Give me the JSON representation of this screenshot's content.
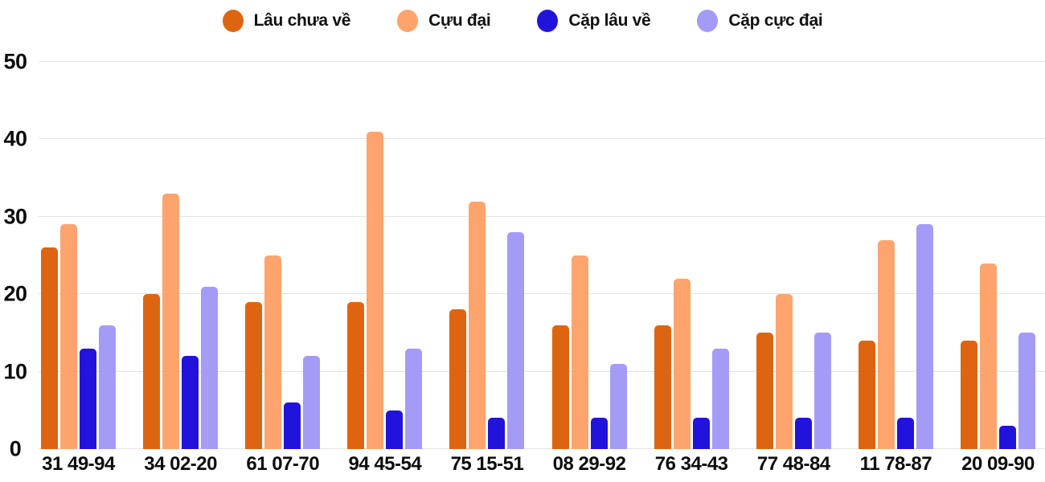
{
  "chart_data": {
    "type": "bar",
    "title": "",
    "categories": [
      "31 49-94",
      "34 02-20",
      "61 07-70",
      "94 45-54",
      "75 15-51",
      "08 29-92",
      "76 34-43",
      "77 48-84",
      "11 78-87",
      "20 09-90"
    ],
    "series": [
      {
        "name": "Lâu chưa về",
        "color": "#DD6512",
        "values": [
          26,
          20,
          19,
          19,
          18,
          16,
          16,
          15,
          14,
          14
        ]
      },
      {
        "name": "Cựu đại",
        "color": "#FFA46D",
        "values": [
          29,
          33,
          25,
          41,
          32,
          25,
          22,
          20,
          27,
          24
        ]
      },
      {
        "name": "Cặp lâu về",
        "color": "#2213DC",
        "values": [
          13,
          12,
          6,
          5,
          4,
          4,
          4,
          4,
          4,
          3
        ]
      },
      {
        "name": "Cặp cực đại",
        "color": "#A49BF7",
        "values": [
          16,
          21,
          12,
          13,
          28,
          11,
          13,
          15,
          29,
          15
        ]
      }
    ],
    "y_ticks": [
      0,
      10,
      20,
      30,
      40,
      50
    ],
    "ylim": [
      0,
      50
    ],
    "grid": true,
    "legend_position": "top",
    "gridline_color": "#e3e3e3",
    "axis_label_color": "#0d0d0d",
    "background_color": "#ffffff"
  }
}
